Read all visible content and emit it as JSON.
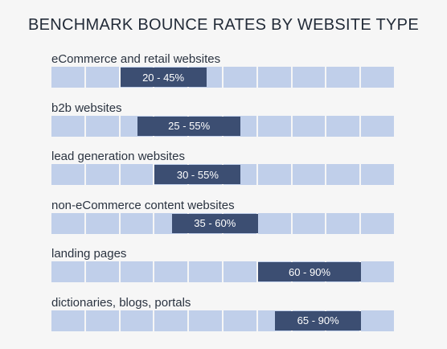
{
  "chart_data": {
    "type": "bar",
    "title": "BENCHMARK BOUNCE RATES BY WEBSITE TYPE",
    "xlim": [
      0,
      100
    ],
    "grid_segments": 10,
    "categories": [
      "eCommerce and retail websites",
      "b2b websites",
      "lead generation websites",
      "non-eCommerce content websites",
      "landing pages",
      "dictionaries, blogs, portals"
    ],
    "ranges": [
      {
        "low": 20,
        "high": 45,
        "label": "20 - 45%"
      },
      {
        "low": 25,
        "high": 55,
        "label": "25 - 55%"
      },
      {
        "low": 30,
        "high": 55,
        "label": "30 - 55%"
      },
      {
        "low": 35,
        "high": 60,
        "label": "35 - 60%"
      },
      {
        "low": 60,
        "high": 90,
        "label": "60 - 90%"
      },
      {
        "low": 65,
        "high": 90,
        "label": "65 - 90%"
      }
    ],
    "colors": {
      "cell": "#c0cfea",
      "bar": "#3c4e72",
      "bar_text": "#ffffff"
    }
  }
}
